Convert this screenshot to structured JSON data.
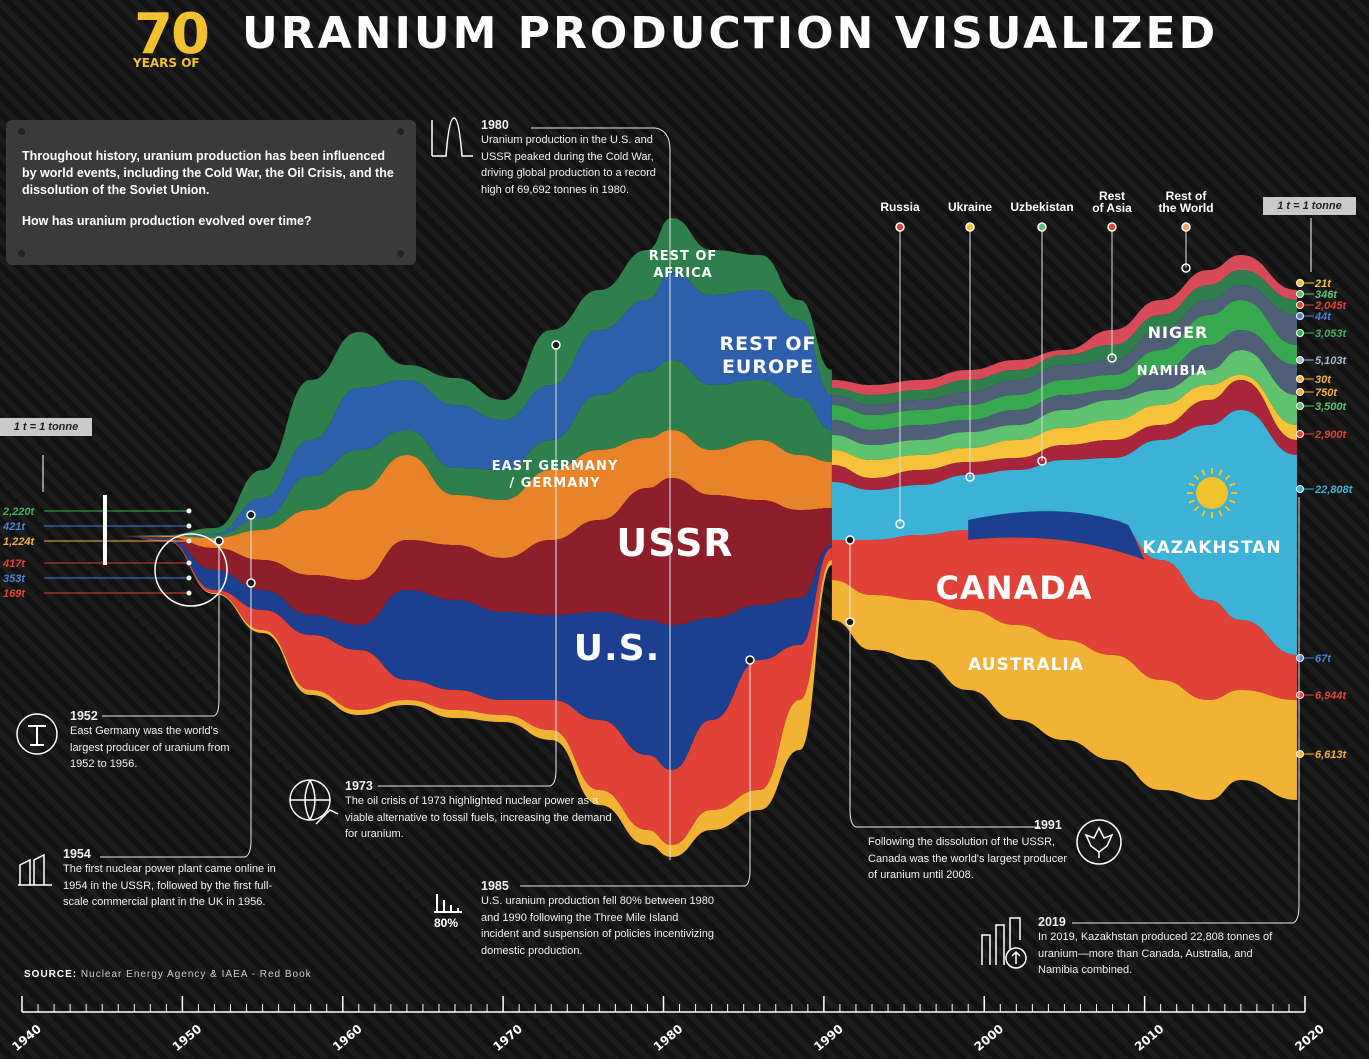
{
  "header": {
    "seventy": "70",
    "years_of": "YEARS OF",
    "title": "URANIUM PRODUCTION VISUALIZED"
  },
  "intro": {
    "p1": "Throughout history, uranium production has been influenced by world events, including the Cold War, the Oil Crisis, and the dissolution of the Soviet Union.",
    "p2": "How has uranium production evolved over time?"
  },
  "annotations": {
    "a1980": {
      "year": "1980",
      "text": "Uranium production in the U.S. and USSR peaked during the Cold War, driving global production to a record high of 69,692 tonnes in 1980."
    },
    "a1952": {
      "year": "1952",
      "text": "East Germany was the world's largest producer of uranium from 1952 to 1956."
    },
    "a1954": {
      "year": "1954",
      "text": "The first nuclear power plant came online in 1954 in the USSR, followed by the first full-scale commercial plant in the UK in 1956."
    },
    "a1973": {
      "year": "1973",
      "text": "The oil crisis of 1973 highlighted nuclear power as a viable alternative to fossil fuels, increasing the demand for uranium."
    },
    "a1985": {
      "year": "1985",
      "text": "U.S. uranium production fell 80% between 1980 and 1990 following the Three Mile Island incident and suspension of policies incentivizing domestic production.",
      "badge": "80%"
    },
    "a1991": {
      "year": "1991",
      "text": "Following the dissolution of the USSR, Canada was the world's largest producer of uranium until 2008."
    },
    "a2019": {
      "year": "2019",
      "text": "In 2019, Kazakhstan produced 22,808 tonnes of uranium—more than Canada, Australia, and Namibia combined."
    }
  },
  "scale_note": "1 t = 1 tonne",
  "source": {
    "label": "SOURCE:",
    "text": "Nuclear Energy Agency & IAEA - Red Book"
  },
  "chart_data": {
    "type": "area",
    "x_ticks": [
      "1940",
      "1950",
      "1960",
      "1970",
      "1980",
      "1990",
      "2000",
      "2010",
      "2020"
    ],
    "xlim": [
      1940,
      2020
    ],
    "layer_colors": {
      "Australia": "#f2b233",
      "U.S. (1990s)": "#e04238",
      "U.S.": "#1c3f8f",
      "USSR": "#8f1e2b",
      "East Germany / Germany": "#e8832a",
      "Rest of Europe": "#2d5fab",
      "Rest of Africa": "#2f7f4d",
      "Kazakhstan": "#3bb2d6",
      "Namibia": "#4f5f78",
      "Niger": "#38a84f",
      "Rest of World": "#d84a58",
      "Uzbekistan": "#5fc26f",
      "Russia": "#a8253a",
      "Ukraine": "#f5c23a"
    },
    "region_labels": [
      "REST OF AFRICA",
      "REST OF EUROPE",
      "EAST GERMANY / GERMANY",
      "USSR",
      "U.S.",
      "CANADA",
      "AUSTRALIA",
      "NIGER",
      "NAMIBIA",
      "KAZAKHSTAN"
    ],
    "top_labels": [
      {
        "name": "Russia",
        "color": "#e04238"
      },
      {
        "name": "Ukraine",
        "color": "#f2c12e"
      },
      {
        "name": "Uzbekistan",
        "color": "#5fc26f"
      },
      {
        "name": "Rest of Asia",
        "color": "#e04238"
      },
      {
        "name": "Rest of the World",
        "color": "#e0a87a"
      }
    ],
    "values_1949": [
      {
        "value": "2,220t",
        "color": "#3fae5a"
      },
      {
        "value": "421t",
        "color": "#4f7fd6"
      },
      {
        "value": "1,224t",
        "color": "#f0b040"
      },
      {
        "value": "417t",
        "color": "#e04238"
      },
      {
        "value": "353t",
        "color": "#4f7fd6"
      },
      {
        "value": "169t",
        "color": "#e04238"
      }
    ],
    "values_2019": [
      {
        "value": "21t",
        "color": "#f2c12e"
      },
      {
        "value": "346t",
        "color": "#5fc26f"
      },
      {
        "value": "2,045t",
        "color": "#e04238"
      },
      {
        "value": "44t",
        "color": "#4f7fd6"
      },
      {
        "value": "3,053t",
        "color": "#3fae5a"
      },
      {
        "value": "5,103t",
        "color": "#a8b8d0"
      },
      {
        "value": "30t",
        "color": "#f0b040"
      },
      {
        "value": "750t",
        "color": "#f0b040"
      },
      {
        "value": "3,500t",
        "color": "#5fc26f"
      },
      {
        "value": "2,900t",
        "color": "#e04238"
      },
      {
        "value": "22,808t",
        "color": "#3bb2d6"
      },
      {
        "value": "67t",
        "color": "#4f7fd6"
      },
      {
        "value": "6,944t",
        "color": "#e04238"
      },
      {
        "value": "6,613t",
        "color": "#f2b233"
      }
    ]
  }
}
